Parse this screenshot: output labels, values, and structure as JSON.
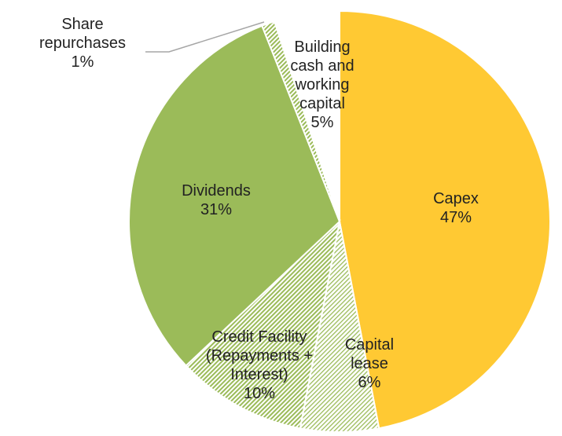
{
  "chart_data": {
    "type": "pie",
    "categories": [
      "Capex",
      "Capital lease",
      "Credit Facility (Repayments + Interest)",
      "Dividends",
      "Share repurchases",
      "Building cash and working capital"
    ],
    "values": [
      47,
      6,
      10,
      31,
      1,
      5
    ],
    "value_labels": [
      "47%",
      "6%",
      "10%",
      "31%",
      "1%",
      "5%"
    ],
    "colors": [
      "#ffc933",
      "#c4d79b",
      "#9bbb59",
      "#9bbb59",
      "#9bbb59",
      "#ffffff"
    ],
    "hatch": [
      false,
      true,
      true,
      false,
      true,
      false
    ]
  }
}
